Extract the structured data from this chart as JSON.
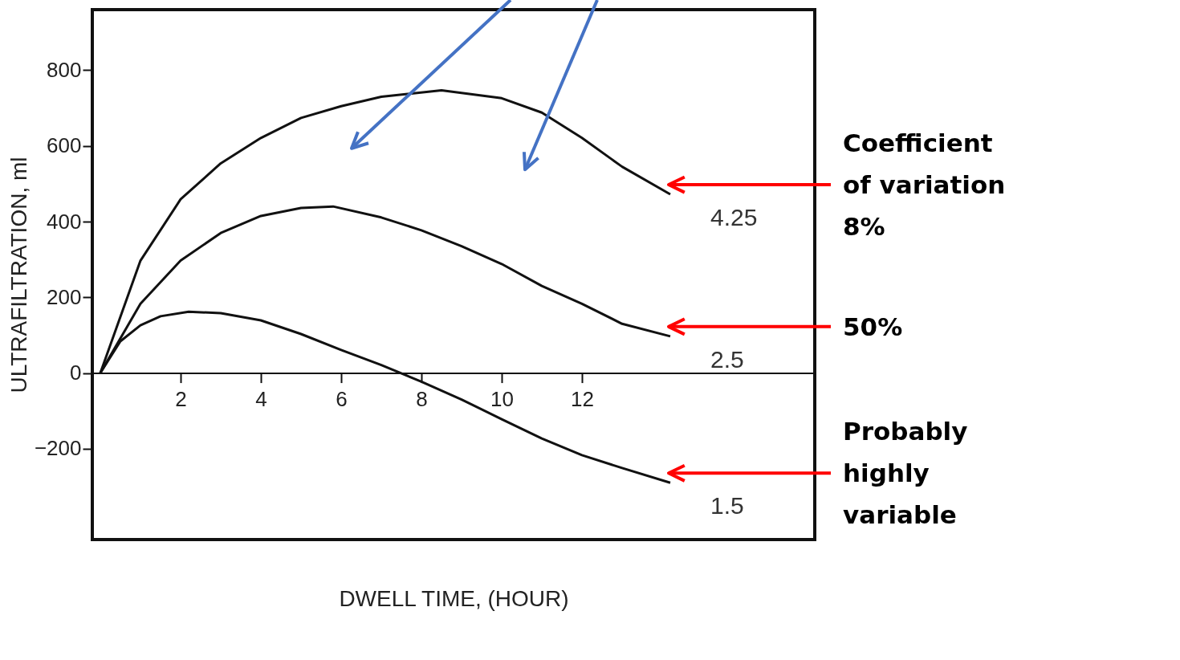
{
  "chart_data": {
    "type": "line",
    "xlabel": "DWELL TIME,  (HOUR)",
    "ylabel": "ULTRAFILTRATION, ml",
    "xlim": [
      -0.2,
      17.8
    ],
    "ylim": [
      -440,
      960
    ],
    "xticks": [
      2,
      4,
      6,
      8,
      10,
      12
    ],
    "yticks": [
      -200,
      0,
      200,
      400,
      600,
      800
    ],
    "grid": false,
    "legend": false,
    "marker": "none",
    "line_style": "solid",
    "series": [
      {
        "name": "4.25",
        "color": "#111111",
        "x": [
          0,
          1,
          2,
          3,
          4,
          5,
          6,
          7,
          8.5,
          10,
          11,
          12,
          13,
          14.2
        ],
        "values": [
          0,
          297,
          459,
          554,
          621,
          674,
          705,
          730,
          747,
          726,
          688,
          621,
          545,
          472
        ]
      },
      {
        "name": "2.5",
        "color": "#111111",
        "x": [
          0,
          1,
          2,
          3,
          4,
          5,
          5.8,
          7,
          8,
          9,
          10,
          11,
          12,
          13,
          14.2
        ],
        "values": [
          0,
          183,
          297,
          370,
          415,
          436,
          440,
          411,
          377,
          335,
          288,
          230,
          183,
          130,
          97
        ]
      },
      {
        "name": "1.5",
        "color": "#111111",
        "x": [
          0,
          0.5,
          1,
          1.5,
          2.2,
          3,
          4,
          5,
          6,
          7,
          8,
          9,
          10,
          11,
          12,
          13,
          14.2
        ],
        "values": [
          0,
          84,
          126,
          150,
          162,
          158,
          139,
          103,
          61,
          21,
          -23,
          -70,
          -122,
          -173,
          -217,
          -251,
          -290
        ]
      }
    ],
    "annotations": [
      "Coefficient of variation 8%",
      "50%",
      "Probably highly variable"
    ]
  }
}
